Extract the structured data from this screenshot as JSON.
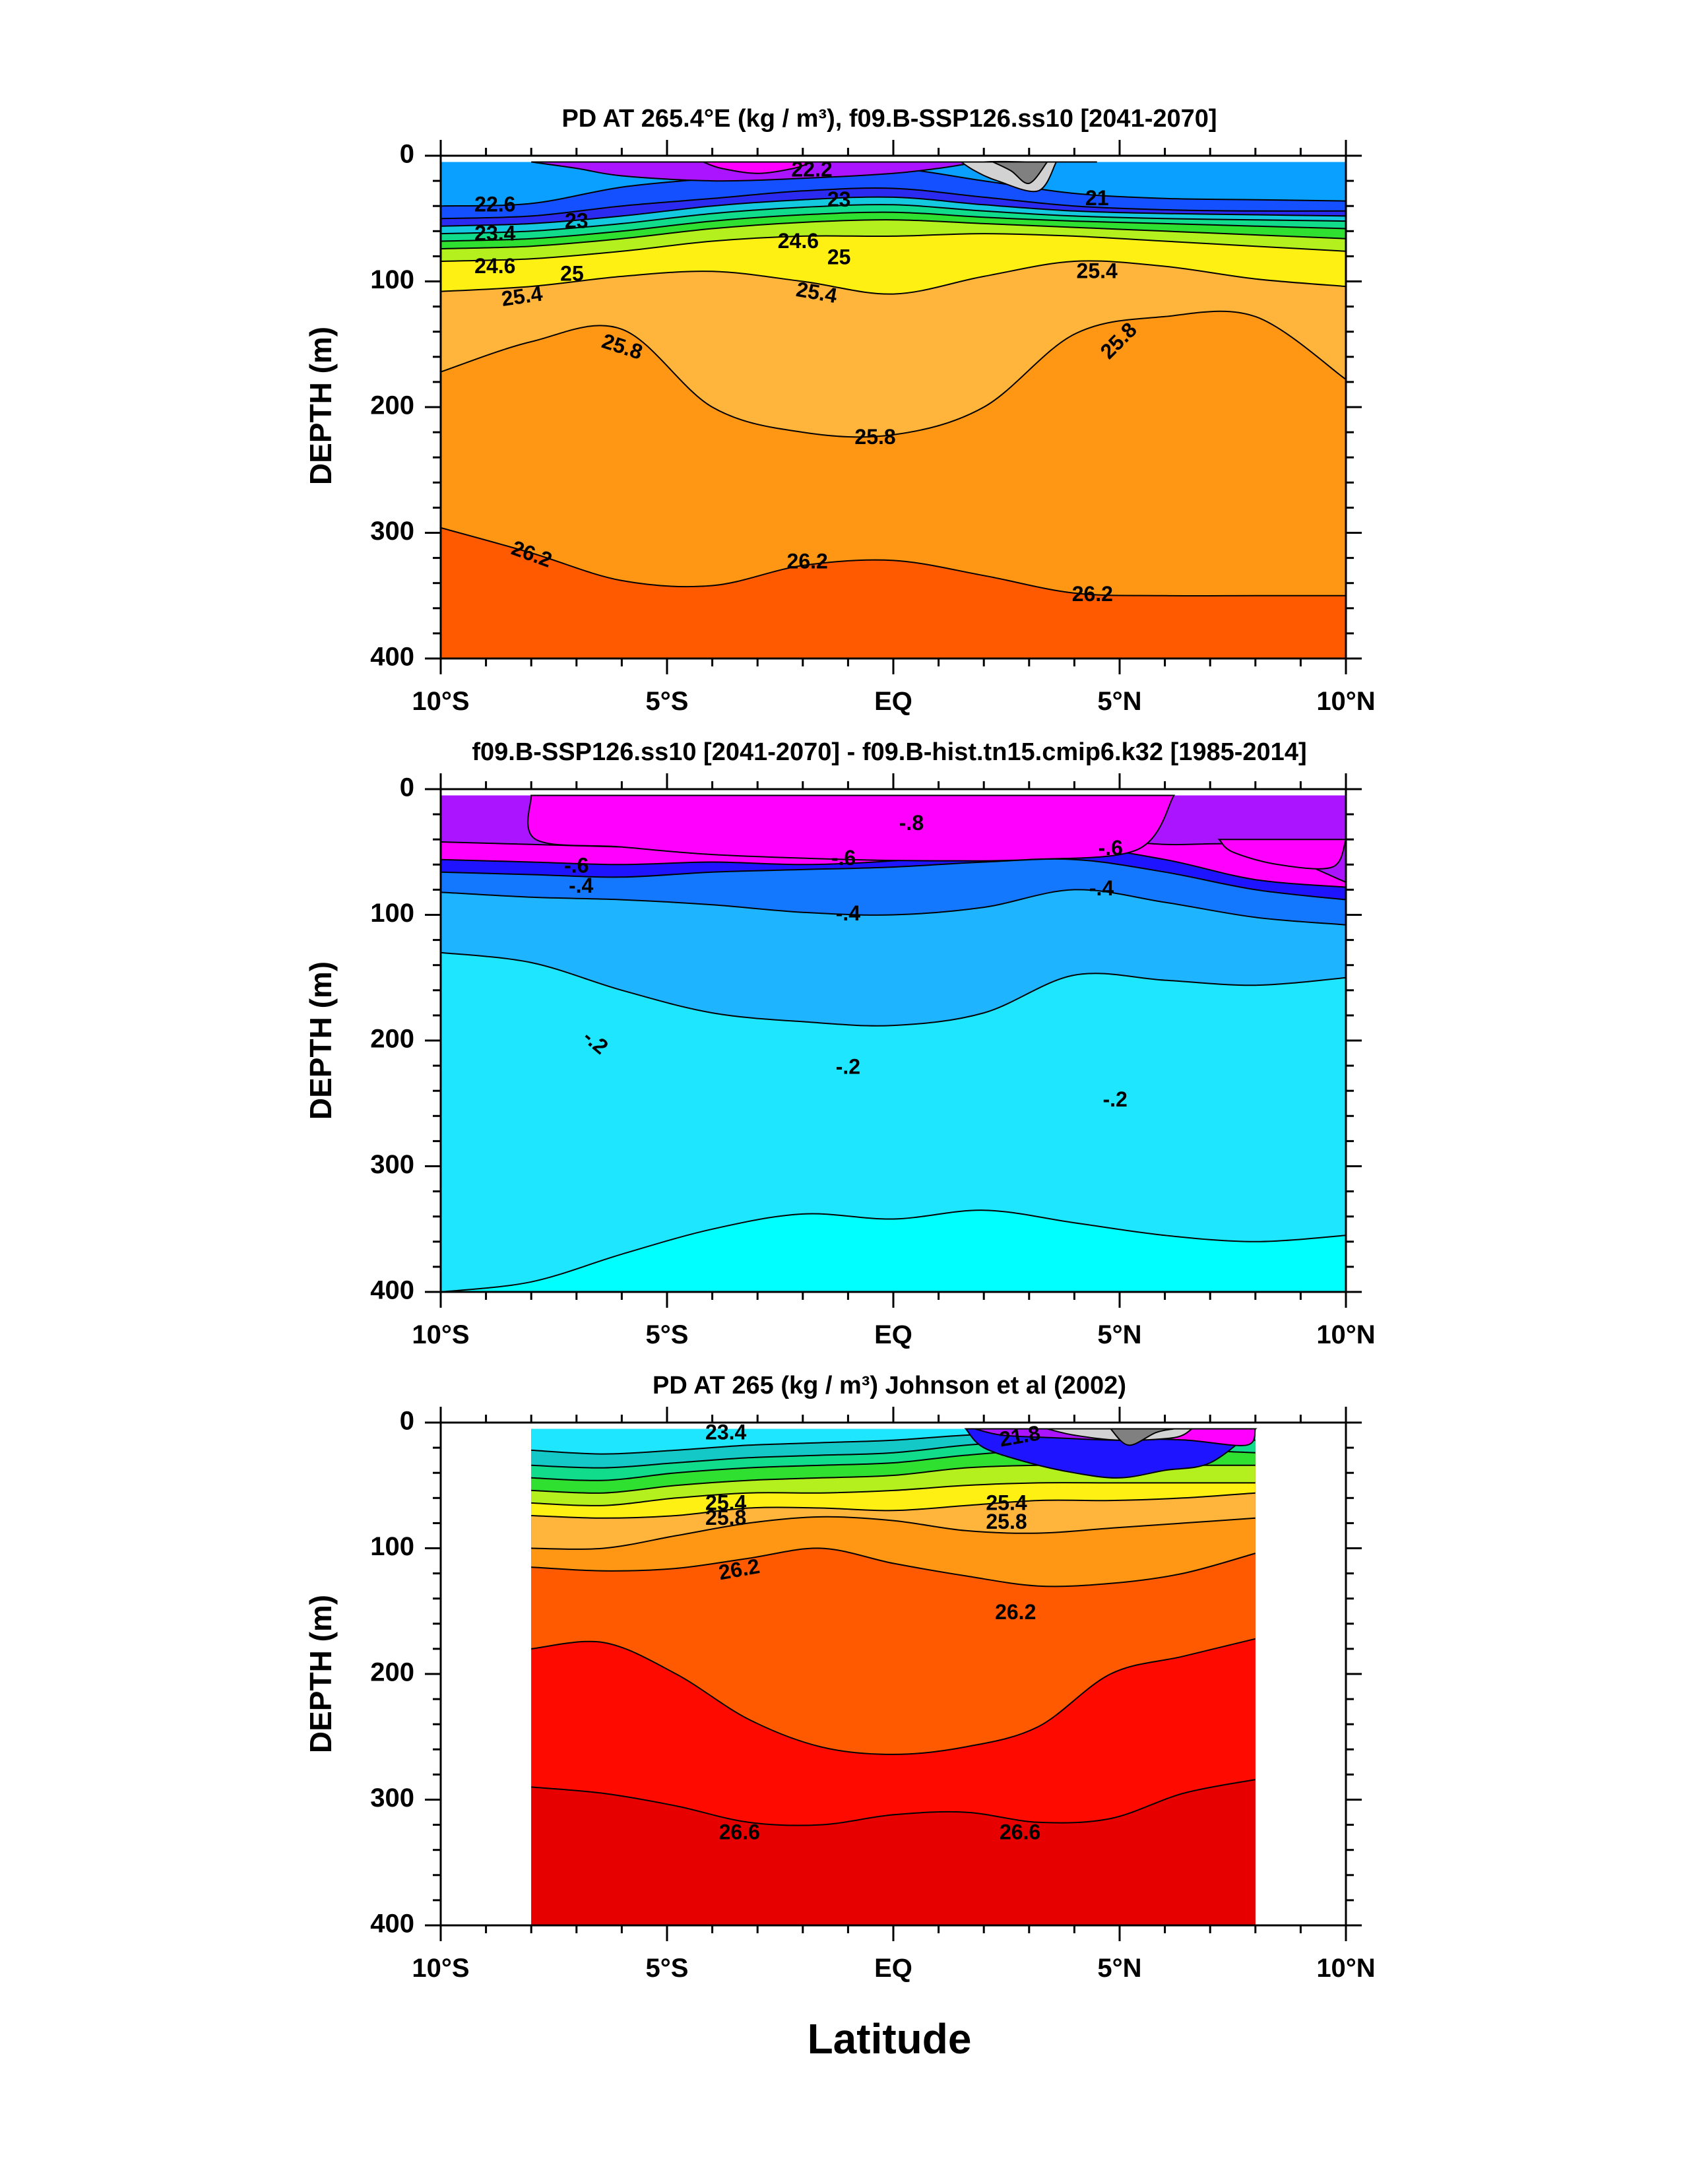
{
  "figure": {
    "x_axis_title": "Latitude"
  },
  "chart_data": [
    {
      "type": "heatmap",
      "title": "PD AT 265.4°E (kg / m³), f09.B-SSP126.ss10 [2041-2070]",
      "ylabel": "DEPTH (m)",
      "xlabel": "Latitude",
      "xlim": [
        -10,
        10
      ],
      "ylim": [
        400,
        0
      ],
      "x_tick_values": [
        -10,
        -5,
        0,
        5,
        10
      ],
      "x_tick_labels": [
        "10°S",
        "5°S",
        "EQ",
        "5°N",
        "10°N"
      ],
      "y_tick_values": [
        0,
        100,
        200,
        300,
        400
      ],
      "y_tick_labels": [
        "0",
        "100",
        "200",
        "300",
        "400"
      ],
      "data_extent": [
        -10,
        10
      ],
      "bands": [
        {
          "level": 22.0,
          "color": "#0aa0ff",
          "depth": [
            5,
            5,
            5,
            5,
            5,
            5,
            5,
            5,
            5,
            5,
            5
          ]
        },
        {
          "level": 22.6,
          "color": "#1450ff",
          "depth": [
            40,
            38,
            25,
            18,
            12,
            10,
            20,
            30,
            34,
            35,
            36
          ]
        },
        {
          "level": 23.0,
          "color": "#2a2af0",
          "depth": [
            50,
            48,
            40,
            34,
            28,
            26,
            33,
            40,
            43,
            44,
            44
          ]
        },
        {
          "level": 23.4,
          "color": "#14c8e0",
          "depth": [
            56,
            54,
            48,
            40,
            35,
            33,
            39,
            44,
            46,
            47,
            48
          ]
        },
        {
          "level": 23.8,
          "color": "#10dc8c",
          "depth": [
            62,
            60,
            54,
            46,
            41,
            39,
            44,
            48,
            50,
            51,
            52
          ]
        },
        {
          "level": 24.2,
          "color": "#30e030",
          "depth": [
            68,
            66,
            60,
            52,
            47,
            45,
            49,
            52,
            54,
            56,
            58
          ]
        },
        {
          "level": 24.6,
          "color": "#b4f01e",
          "depth": [
            74,
            72,
            66,
            58,
            53,
            51,
            54,
            57,
            60,
            63,
            66
          ]
        },
        {
          "level": 25.0,
          "color": "#fff014",
          "depth": [
            84,
            82,
            76,
            68,
            64,
            64,
            62,
            64,
            68,
            72,
            76
          ]
        },
        {
          "level": 25.4,
          "color": "#ffb43c",
          "depth": [
            108,
            104,
            96,
            92,
            100,
            110,
            96,
            84,
            88,
            98,
            104
          ]
        },
        {
          "level": 25.8,
          "color": "#ff9614",
          "depth": [
            172,
            148,
            138,
            200,
            220,
            222,
            200,
            142,
            128,
            128,
            178
          ]
        },
        {
          "level": 26.2,
          "color": "#ff5a00",
          "depth": [
            296,
            316,
            338,
            342,
            326,
            322,
            334,
            348,
            350,
            350,
            350
          ]
        }
      ],
      "base_color": "#ff0a00",
      "top_patches": [
        {
          "color": "#aa14ff",
          "x": [
            -8,
            -7,
            -6,
            -4,
            -2,
            0,
            1,
            2,
            3,
            4,
            4.5
          ],
          "y": [
            5,
            10,
            16,
            20,
            18,
            14,
            10,
            5,
            5,
            5,
            5
          ]
        },
        {
          "color": "#ff00ff",
          "x": [
            -4.2,
            -3.8,
            -3,
            -2.2,
            -1.8
          ],
          "y": [
            5,
            10,
            14,
            10,
            5
          ]
        },
        {
          "color": "#d2d2d2",
          "x": [
            1.5,
            1.8,
            2.3,
            3.2,
            3.6
          ],
          "y": [
            5,
            12,
            20,
            28,
            5
          ]
        },
        {
          "color": "#808080",
          "x": [
            2.2,
            2.6,
            3.0,
            3.4
          ],
          "y": [
            5,
            12,
            22,
            5
          ]
        }
      ],
      "contour_labels": [
        {
          "text": "22.2",
          "lon": -1.8,
          "depth": 12,
          "angle": 0
        },
        {
          "text": "22.6",
          "lon": -8.8,
          "depth": 40,
          "angle": 0
        },
        {
          "text": "23",
          "lon": -7.0,
          "depth": 53,
          "angle": 0
        },
        {
          "text": "23",
          "lon": -1.2,
          "depth": 36,
          "angle": 0
        },
        {
          "text": "23.4",
          "lon": -8.8,
          "depth": 63,
          "angle": 0
        },
        {
          "text": "24.6",
          "lon": -8.8,
          "depth": 89,
          "angle": 0
        },
        {
          "text": "25",
          "lon": -7.1,
          "depth": 95,
          "angle": 0
        },
        {
          "text": "24.6",
          "lon": -2.1,
          "depth": 69,
          "angle": 0
        },
        {
          "text": "25",
          "lon": -1.2,
          "depth": 82,
          "angle": 0
        },
        {
          "text": "21",
          "lon": 4.5,
          "depth": 35,
          "angle": 0
        },
        {
          "text": "25.4",
          "lon": -8.2,
          "depth": 113,
          "angle": -8
        },
        {
          "text": "25.4",
          "lon": -1.7,
          "depth": 110,
          "angle": 10
        },
        {
          "text": "25.4",
          "lon": 4.5,
          "depth": 93,
          "angle": 0
        },
        {
          "text": "25.8",
          "lon": -6.0,
          "depth": 153,
          "angle": 18
        },
        {
          "text": "25.8",
          "lon": 5.0,
          "depth": 148,
          "angle": -45
        },
        {
          "text": "25.8",
          "lon": -0.4,
          "depth": 225,
          "angle": 0
        },
        {
          "text": "26.2",
          "lon": -8.0,
          "depth": 318,
          "angle": 20
        },
        {
          "text": "26.2",
          "lon": -1.9,
          "depth": 324,
          "angle": 0
        },
        {
          "text": "26.2",
          "lon": 4.4,
          "depth": 350,
          "angle": 0
        }
      ]
    },
    {
      "type": "heatmap",
      "title": "f09.B-SSP126.ss10 [2041-2070] - f09.B-hist.tn15.cmip6.k32 [1985-2014]",
      "ylabel": "DEPTH (m)",
      "xlabel": "Latitude",
      "xlim": [
        -10,
        10
      ],
      "ylim": [
        400,
        0
      ],
      "x_tick_values": [
        -10,
        -5,
        0,
        5,
        10
      ],
      "x_tick_labels": [
        "10°S",
        "5°S",
        "EQ",
        "5°N",
        "10°N"
      ],
      "y_tick_values": [
        0,
        100,
        200,
        300,
        400
      ],
      "y_tick_labels": [
        "0",
        "100",
        "200",
        "300",
        "400"
      ],
      "data_extent": [
        -10,
        10
      ],
      "bands": [
        {
          "level": -0.8,
          "color": "#aa14ff",
          "depth": [
            5,
            5,
            5,
            5,
            5,
            5,
            5,
            5,
            5,
            5,
            5
          ]
        },
        {
          "level": -0.7,
          "color": "#ff00ff",
          "depth": [
            42,
            44,
            46,
            48,
            50,
            50,
            46,
            40,
            44,
            46,
            74
          ]
        },
        {
          "level": -0.6,
          "color": "#1e14ff",
          "depth": [
            56,
            58,
            60,
            58,
            60,
            57,
            50,
            46,
            56,
            72,
            78
          ]
        },
        {
          "level": -0.5,
          "color": "#1478ff",
          "depth": [
            66,
            68,
            70,
            66,
            64,
            62,
            58,
            56,
            66,
            80,
            88
          ]
        },
        {
          "level": -0.4,
          "color": "#1eb4ff",
          "depth": [
            82,
            86,
            88,
            92,
            98,
            100,
            94,
            80,
            90,
            102,
            108
          ]
        },
        {
          "level": -0.3,
          "color": "#1ee6ff",
          "depth": [
            130,
            138,
            160,
            178,
            185,
            188,
            178,
            148,
            152,
            156,
            150
          ]
        },
        {
          "level": -0.2,
          "color": "#00ffff",
          "depth": [
            400,
            392,
            370,
            350,
            338,
            342,
            335,
            345,
            355,
            360,
            355
          ]
        }
      ],
      "base_color": "#0affd2",
      "top_patches": [
        {
          "color": "#d2d2d2",
          "x": [
            -4.9,
            -4.7,
            -3,
            -1,
            1,
            3,
            4.8,
            5.0
          ],
          "y": [
            5,
            18,
            26,
            34,
            38,
            40,
            35,
            5
          ]
        },
        {
          "color": "#ff00ff",
          "x": [
            -8,
            -7.9,
            -6,
            -4,
            -1,
            1,
            3,
            5.4,
            6.2
          ],
          "y": [
            5,
            40,
            46,
            52,
            56,
            57,
            56,
            48,
            5
          ]
        },
        {
          "color": "#ff00ff",
          "x": [
            7.2,
            7.5,
            8.5,
            9.7,
            10
          ],
          "y": [
            40,
            50,
            60,
            62,
            40
          ]
        }
      ],
      "contour_labels": [
        {
          "text": "-.8",
          "lon": 0.4,
          "depth": 28,
          "angle": 0
        },
        {
          "text": "-.6",
          "lon": -7.0,
          "depth": 62,
          "angle": 0
        },
        {
          "text": "-.6",
          "lon": -1.1,
          "depth": 56,
          "angle": 0
        },
        {
          "text": "-.6",
          "lon": 4.8,
          "depth": 48,
          "angle": 0
        },
        {
          "text": "-.4",
          "lon": -6.9,
          "depth": 78,
          "angle": 0
        },
        {
          "text": "-.4",
          "lon": 4.6,
          "depth": 80,
          "angle": 0
        },
        {
          "text": "-.4",
          "lon": -1.0,
          "depth": 100,
          "angle": 0
        },
        {
          "text": "-.2",
          "lon": -6.6,
          "depth": 202,
          "angle": 40
        },
        {
          "text": "-.2",
          "lon": -1.0,
          "depth": 222,
          "angle": 0
        },
        {
          "text": "-.2",
          "lon": 4.9,
          "depth": 248,
          "angle": 0
        }
      ]
    },
    {
      "type": "heatmap",
      "title": "PD AT 265 (kg / m³) Johnson et al (2002)",
      "ylabel": "DEPTH (m)",
      "xlabel": "Latitude",
      "xlim": [
        -10,
        10
      ],
      "ylim": [
        400,
        0
      ],
      "x_tick_values": [
        -10,
        -5,
        0,
        5,
        10
      ],
      "x_tick_labels": [
        "10°S",
        "5°S",
        "EQ",
        "5°N",
        "10°N"
      ],
      "y_tick_values": [
        0,
        100,
        200,
        300,
        400
      ],
      "y_tick_labels": [
        "0",
        "100",
        "200",
        "300",
        "400"
      ],
      "data_extent": [
        -8,
        8
      ],
      "bands": [
        {
          "level": 23.0,
          "color": "#1ee6ff",
          "depth": [
            5,
            5,
            5,
            5,
            5,
            5,
            5,
            5,
            5,
            5,
            5
          ]
        },
        {
          "level": 23.4,
          "color": "#14c8c8",
          "depth": [
            22,
            25,
            22,
            18,
            16,
            14,
            10,
            8,
            7,
            8,
            10
          ]
        },
        {
          "level": 24.0,
          "color": "#10dc8c",
          "depth": [
            34,
            36,
            32,
            28,
            26,
            24,
            18,
            14,
            12,
            12,
            14
          ]
        },
        {
          "level": 24.6,
          "color": "#30e030",
          "depth": [
            44,
            46,
            40,
            36,
            34,
            32,
            26,
            22,
            22,
            22,
            24
          ]
        },
        {
          "level": 25.0,
          "color": "#b4f01e",
          "depth": [
            54,
            56,
            50,
            46,
            44,
            42,
            36,
            34,
            34,
            34,
            34
          ]
        },
        {
          "level": 25.4,
          "color": "#fff014",
          "depth": [
            64,
            66,
            60,
            56,
            56,
            54,
            50,
            48,
            48,
            48,
            48
          ]
        },
        {
          "level": 25.8,
          "color": "#ffb43c",
          "depth": [
            74,
            76,
            74,
            68,
            68,
            70,
            66,
            62,
            62,
            60,
            56
          ]
        },
        {
          "level": 26.0,
          "color": "#ff9614",
          "depth": [
            100,
            100,
            90,
            80,
            75,
            78,
            86,
            88,
            84,
            80,
            76
          ]
        },
        {
          "level": 26.2,
          "color": "#ff5a00",
          "depth": [
            115,
            118,
            116,
            108,
            100,
            112,
            122,
            130,
            128,
            120,
            104
          ]
        },
        {
          "level": 26.4,
          "color": "#ff0a00",
          "depth": [
            180,
            175,
            200,
            236,
            258,
            264,
            258,
            242,
            200,
            186,
            172
          ]
        },
        {
          "level": 26.6,
          "color": "#e60000",
          "depth": [
            290,
            295,
            305,
            318,
            320,
            312,
            310,
            318,
            315,
            295,
            284
          ]
        }
      ],
      "base_color": "#c80000",
      "top_patches": [
        {
          "color": "#1e14ff",
          "x": [
            1.6,
            2.0,
            3,
            4,
            5,
            6,
            7,
            8
          ],
          "y": [
            5,
            20,
            32,
            40,
            44,
            38,
            32,
            5
          ]
        },
        {
          "color": "#aa14ff",
          "x": [
            1.8,
            2.4,
            3.5,
            5,
            6.5,
            7.5,
            8
          ],
          "y": [
            5,
            10,
            12,
            14,
            12,
            10,
            5
          ]
        },
        {
          "color": "#ff00ff",
          "x": [
            4.6,
            5.2,
            6.5,
            7.8,
            8
          ],
          "y": [
            5,
            12,
            14,
            18,
            5
          ]
        },
        {
          "color": "#d2d2d2",
          "x": [
            3.4,
            4.0,
            5.0,
            6.2,
            6.6
          ],
          "y": [
            5,
            10,
            14,
            12,
            5
          ]
        },
        {
          "color": "#808080",
          "x": [
            4.8,
            5.2,
            5.8,
            6.2
          ],
          "y": [
            5,
            18,
            8,
            5
          ]
        }
      ],
      "contour_labels": [
        {
          "text": "23.4",
          "lon": -3.7,
          "depth": 9,
          "angle": 0
        },
        {
          "text": "25.4",
          "lon": -3.7,
          "depth": 65,
          "angle": 0
        },
        {
          "text": "25.8",
          "lon": -3.7,
          "depth": 77,
          "angle": 0
        },
        {
          "text": "21.8",
          "lon": 2.8,
          "depth": 12,
          "angle": -10
        },
        {
          "text": "25.4",
          "lon": 2.5,
          "depth": 65,
          "angle": 0
        },
        {
          "text": "25.8",
          "lon": 2.5,
          "depth": 80,
          "angle": 0
        },
        {
          "text": "26.2",
          "lon": -3.4,
          "depth": 118,
          "angle": -10
        },
        {
          "text": "26.2",
          "lon": 2.7,
          "depth": 152,
          "angle": 0
        },
        {
          "text": "26.6",
          "lon": -3.4,
          "depth": 327,
          "angle": 0
        },
        {
          "text": "26.6",
          "lon": 2.8,
          "depth": 327,
          "angle": 0
        }
      ]
    }
  ]
}
